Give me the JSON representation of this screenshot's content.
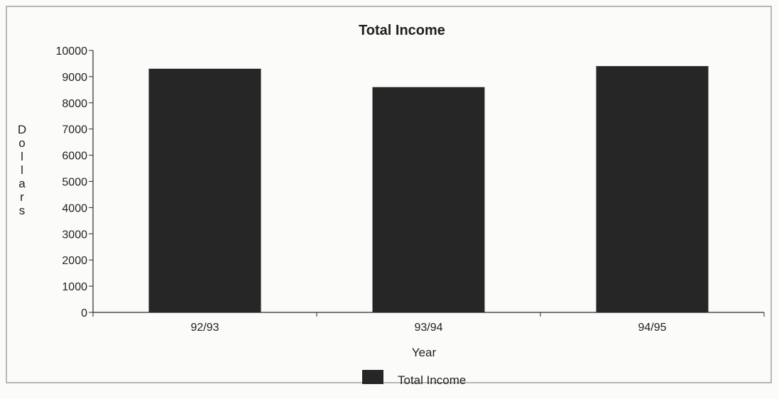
{
  "chart_data": {
    "type": "bar",
    "title": "Total Income",
    "categories": [
      "92/93",
      "93/94",
      "94/95"
    ],
    "series": [
      {
        "name": "Total Income",
        "values": [
          9300,
          8600,
          9400
        ],
        "color": "#262626"
      }
    ],
    "xlabel": "Year",
    "ylabel": "Dollars",
    "ylim": [
      0,
      10000
    ],
    "yticks": [
      "0",
      "1000",
      "2000",
      "3000",
      "4000",
      "5000",
      "6000",
      "7000",
      "8000",
      "9000",
      "10000"
    ],
    "grid": false,
    "legend": {
      "position": "bottom",
      "entries": [
        "Total Income"
      ]
    }
  }
}
